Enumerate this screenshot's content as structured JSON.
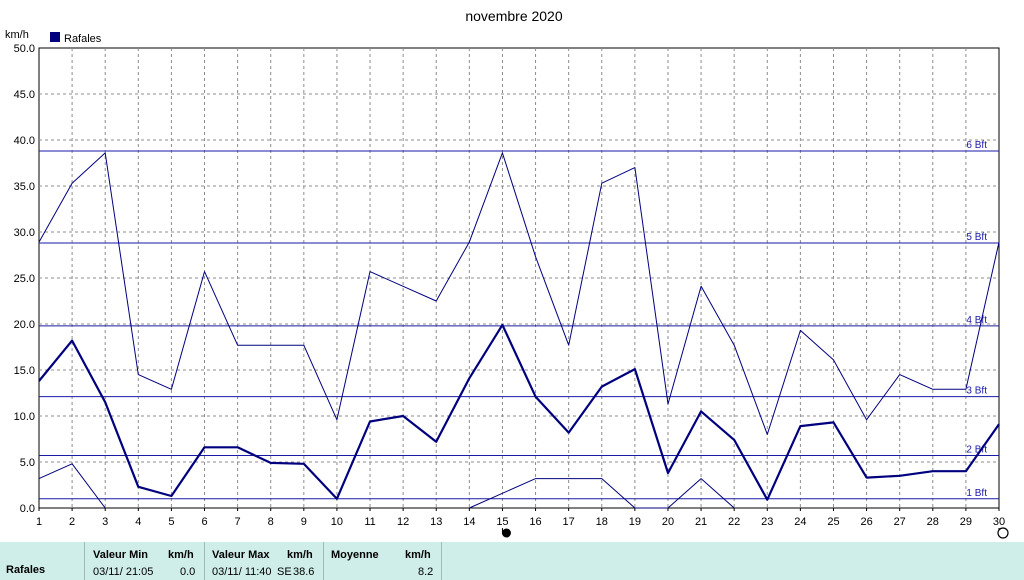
{
  "chart_data": {
    "type": "line",
    "title": "novembre 2020",
    "ylabel": "km/h",
    "ylim": [
      0,
      50
    ],
    "yticks": [
      "0.0",
      "5.0",
      "10.0",
      "15.0",
      "20.0",
      "25.0",
      "30.0",
      "35.0",
      "40.0",
      "45.0",
      "50.0"
    ],
    "x": [
      1,
      2,
      3,
      4,
      5,
      6,
      7,
      8,
      9,
      10,
      11,
      12,
      13,
      14,
      15,
      16,
      17,
      18,
      19,
      20,
      21,
      22,
      23,
      24,
      25,
      26,
      27,
      28,
      29,
      30
    ],
    "grid": true,
    "legend": {
      "label": "Rafales",
      "color": "#00007f",
      "position": "top-left"
    },
    "series": [
      {
        "name": "Rafales",
        "role": "mean",
        "color": "#00007f",
        "values": [
          13.8,
          18.2,
          11.5,
          2.3,
          1.3,
          6.6,
          6.6,
          4.9,
          4.8,
          1.0,
          9.4,
          10.0,
          7.2,
          14.1,
          19.9,
          12.1,
          8.2,
          13.2,
          15.1,
          3.8,
          10.5,
          7.4,
          0.9,
          8.9,
          9.3,
          3.3,
          3.5,
          4.0,
          4.0,
          9.1
        ]
      },
      {
        "name": "",
        "role": "max",
        "color": "#00007f",
        "values": [
          28.9,
          35.3,
          38.6,
          14.5,
          12.9,
          25.7,
          17.7,
          17.7,
          17.7,
          9.6,
          25.7,
          24.1,
          22.5,
          28.9,
          38.6,
          27.3,
          17.7,
          35.3,
          37.0,
          11.3,
          24.1,
          17.7,
          8.0,
          19.3,
          16.1,
          9.6,
          14.5,
          12.9,
          12.9,
          28.9
        ]
      },
      {
        "name": "",
        "role": "min",
        "color": "#00007f",
        "values": [
          3.2,
          4.8,
          0.0,
          null,
          null,
          null,
          null,
          null,
          null,
          null,
          null,
          null,
          null,
          0.0,
          1.6,
          3.2,
          3.2,
          3.2,
          0.0,
          0.0,
          3.2,
          0.0,
          null,
          null,
          null,
          null,
          null,
          null,
          null,
          null
        ]
      }
    ],
    "reference_lines": [
      {
        "label": "1 Bft",
        "y": 1.0
      },
      {
        "label": "2 Bft",
        "y": 5.7
      },
      {
        "label": "3 Bft",
        "y": 12.1
      },
      {
        "label": "4 Bft",
        "y": 19.8
      },
      {
        "label": "5 Bft",
        "y": 28.8
      },
      {
        "label": "6 Bft",
        "y": 38.8
      }
    ],
    "moon_markers": [
      {
        "x": 15,
        "phase": "new"
      },
      {
        "x": 30,
        "phase": "full"
      }
    ]
  },
  "footer": {
    "series_label": "Rafales",
    "min_header": "Valeur Min",
    "min_unit": "km/h",
    "min_time": "03/11/  21:05",
    "min_value": "0.0",
    "max_header": "Valeur Max",
    "max_unit": "km/h",
    "max_time": "03/11/  11:40",
    "max_dir": "SE",
    "max_value": "38.6",
    "avg_header": "Moyenne",
    "avg_unit": "km/h",
    "avg_value": "8.2"
  }
}
